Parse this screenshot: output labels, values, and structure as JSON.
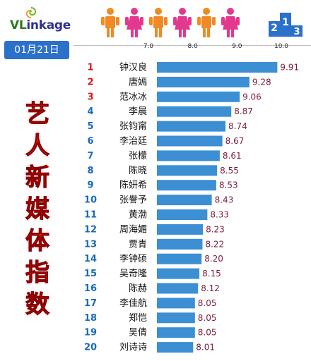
{
  "header": {
    "logo_text_a": "VL",
    "logo_text_b": "inkage",
    "date": "01月21日",
    "badge_digits": [
      "2",
      "1",
      "3"
    ],
    "vertical_title_chars": [
      "艺",
      "人",
      "新",
      "媒",
      "体",
      "指",
      "数"
    ]
  },
  "colors": {
    "bar": "#3b8fd2",
    "rank": "#d7191c",
    "rank_other": "#1a6bb5",
    "value": "#7b1c3b",
    "title": "#d7191c",
    "date_box": "#2b71c9",
    "person_orange": "#f08a24",
    "person_pink": "#e2398f"
  },
  "people_icons": [
    "person-orange-icon",
    "person-pink-icon",
    "person-orange-icon",
    "person-pink-icon",
    "person-orange-icon",
    "person-pink-icon"
  ],
  "chart_data": {
    "type": "bar",
    "orientation": "horizontal",
    "title": "艺人新媒体指数",
    "subtitle": "01月21日",
    "xlim": [
      6.0,
      10.0
    ],
    "xticks": [
      "7.0",
      "8.0",
      "9.0",
      "10.0"
    ],
    "grid": false,
    "legend": "none",
    "ranks": [
      "1",
      "2",
      "3",
      "4",
      "5",
      "6",
      "7",
      "8",
      "9",
      "10",
      "11",
      "12",
      "13",
      "14",
      "15",
      "16",
      "17",
      "18",
      "19",
      "20"
    ],
    "categories": [
      "钟汉良",
      "唐嫣",
      "范冰冰",
      "李晨",
      "张钧甯",
      "李治廷",
      "张檬",
      "陈晓",
      "陈妍希",
      "张譽予",
      "黄渤",
      "周海媚",
      "贾青",
      "李钟硕",
      "吴奇隆",
      "陈赫",
      "李佳航",
      "郑恺",
      "吴倩",
      "刘诗诗"
    ],
    "values": [
      9.91,
      9.28,
      9.06,
      8.87,
      8.74,
      8.67,
      8.61,
      8.55,
      8.53,
      8.43,
      8.33,
      8.23,
      8.22,
      8.2,
      8.15,
      8.12,
      8.05,
      8.05,
      8.05,
      8.01
    ],
    "value_labels": [
      "9.91",
      "9.28",
      "9.06",
      "8.87",
      "8.74",
      "8.67",
      "8.61",
      "8.55",
      "8.53",
      "8.43",
      "8.33",
      "8.23",
      "8.22",
      "8.20",
      "8.15",
      "8.12",
      "8.05",
      "8.05",
      "8.05",
      "8.01"
    ]
  }
}
